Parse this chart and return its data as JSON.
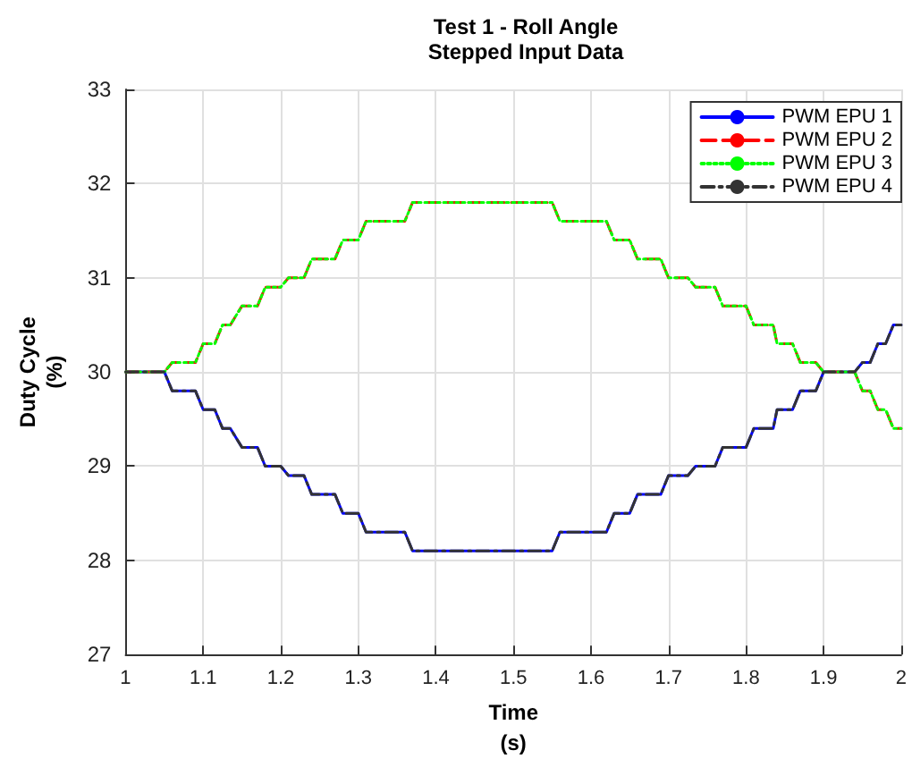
{
  "chart_data": {
    "type": "line",
    "title": "Test 1 - Roll Angle",
    "subtitle": "Stepped Input Data",
    "xlabel": "Time\n(s)",
    "ylabel": "Duty Cycle\n(%)",
    "xlim": [
      1,
      2
    ],
    "xticks": [
      1,
      1.1,
      1.2,
      1.3,
      1.4,
      1.5,
      1.6,
      1.7,
      1.8,
      1.9,
      2
    ],
    "ylim": [
      27,
      33
    ],
    "yticks": [
      27,
      28,
      29,
      30,
      31,
      32,
      33
    ],
    "grid": true,
    "legend": "top right",
    "marker": "none",
    "series": [
      {
        "name": "PWM EPU 1",
        "color": "#0000ff",
        "line_style": "solid",
        "x": [
          1,
          1.05,
          1.06,
          1.09,
          1.1,
          1.115,
          1.125,
          1.135,
          1.15,
          1.17,
          1.18,
          1.2,
          1.21,
          1.23,
          1.24,
          1.27,
          1.28,
          1.3,
          1.31,
          1.36,
          1.37,
          1.55,
          1.56,
          1.62,
          1.63,
          1.65,
          1.66,
          1.69,
          1.7,
          1.725,
          1.735,
          1.76,
          1.77,
          1.8,
          1.81,
          1.835,
          1.84,
          1.86,
          1.87,
          1.89,
          1.9,
          1.94,
          1.95,
          1.96,
          1.97,
          1.98,
          1.99,
          2
        ],
        "values": [
          30,
          30,
          29.8,
          29.8,
          29.6,
          29.6,
          29.4,
          29.4,
          29.2,
          29.2,
          29,
          29,
          28.9,
          28.9,
          28.7,
          28.7,
          28.5,
          28.5,
          28.3,
          28.3,
          28.1,
          28.1,
          28.3,
          28.3,
          28.5,
          28.5,
          28.7,
          28.7,
          28.9,
          28.9,
          29,
          29,
          29.2,
          29.2,
          29.4,
          29.4,
          29.6,
          29.6,
          29.8,
          29.8,
          30,
          30,
          30.1,
          30.1,
          30.3,
          30.3,
          30.5,
          30.5
        ]
      },
      {
        "name": "PWM EPU 2",
        "color": "#ff0000",
        "line_style": "dashed",
        "x": [
          1,
          1.05,
          1.06,
          1.09,
          1.1,
          1.115,
          1.125,
          1.135,
          1.15,
          1.17,
          1.18,
          1.2,
          1.21,
          1.23,
          1.24,
          1.27,
          1.28,
          1.3,
          1.31,
          1.36,
          1.37,
          1.55,
          1.56,
          1.62,
          1.63,
          1.65,
          1.66,
          1.69,
          1.7,
          1.725,
          1.735,
          1.76,
          1.77,
          1.8,
          1.81,
          1.835,
          1.84,
          1.86,
          1.87,
          1.89,
          1.9,
          1.94,
          1.95,
          1.96,
          1.97,
          1.98,
          1.99,
          2
        ],
        "values": [
          30,
          30,
          30.1,
          30.1,
          30.3,
          30.3,
          30.5,
          30.5,
          30.7,
          30.7,
          30.9,
          30.9,
          31,
          31,
          31.2,
          31.2,
          31.4,
          31.4,
          31.6,
          31.6,
          31.8,
          31.8,
          31.6,
          31.6,
          31.4,
          31.4,
          31.2,
          31.2,
          31,
          31,
          30.9,
          30.9,
          30.7,
          30.7,
          30.5,
          30.5,
          30.3,
          30.3,
          30.1,
          30.1,
          30,
          30,
          29.8,
          29.8,
          29.6,
          29.6,
          29.4,
          29.4
        ]
      },
      {
        "name": "PWM EPU 3",
        "color": "#00ff00",
        "line_style": "dotted",
        "x": [
          1,
          1.05,
          1.06,
          1.09,
          1.1,
          1.115,
          1.125,
          1.135,
          1.15,
          1.17,
          1.18,
          1.2,
          1.21,
          1.23,
          1.24,
          1.27,
          1.28,
          1.3,
          1.31,
          1.36,
          1.37,
          1.55,
          1.56,
          1.62,
          1.63,
          1.65,
          1.66,
          1.69,
          1.7,
          1.725,
          1.735,
          1.76,
          1.77,
          1.8,
          1.81,
          1.835,
          1.84,
          1.86,
          1.87,
          1.89,
          1.9,
          1.94,
          1.95,
          1.96,
          1.97,
          1.98,
          1.99,
          2
        ],
        "values": [
          30,
          30,
          30.1,
          30.1,
          30.3,
          30.3,
          30.5,
          30.5,
          30.7,
          30.7,
          30.9,
          30.9,
          31,
          31,
          31.2,
          31.2,
          31.4,
          31.4,
          31.6,
          31.6,
          31.8,
          31.8,
          31.6,
          31.6,
          31.4,
          31.4,
          31.2,
          31.2,
          31,
          31,
          30.9,
          30.9,
          30.7,
          30.7,
          30.5,
          30.5,
          30.3,
          30.3,
          30.1,
          30.1,
          30,
          30,
          29.8,
          29.8,
          29.6,
          29.6,
          29.4,
          29.4
        ]
      },
      {
        "name": "PWM EPU 4",
        "color": "#333333",
        "line_style": "dashdot",
        "x": [
          1,
          1.05,
          1.06,
          1.09,
          1.1,
          1.115,
          1.125,
          1.135,
          1.15,
          1.17,
          1.18,
          1.2,
          1.21,
          1.23,
          1.24,
          1.27,
          1.28,
          1.3,
          1.31,
          1.36,
          1.37,
          1.55,
          1.56,
          1.62,
          1.63,
          1.65,
          1.66,
          1.69,
          1.7,
          1.725,
          1.735,
          1.76,
          1.77,
          1.8,
          1.81,
          1.835,
          1.84,
          1.86,
          1.87,
          1.89,
          1.9,
          1.94,
          1.95,
          1.96,
          1.97,
          1.98,
          1.99,
          2
        ],
        "values": [
          30,
          30,
          29.8,
          29.8,
          29.6,
          29.6,
          29.4,
          29.4,
          29.2,
          29.2,
          29,
          29,
          28.9,
          28.9,
          28.7,
          28.7,
          28.5,
          28.5,
          28.3,
          28.3,
          28.1,
          28.1,
          28.3,
          28.3,
          28.5,
          28.5,
          28.7,
          28.7,
          28.9,
          28.9,
          29,
          29,
          29.2,
          29.2,
          29.4,
          29.4,
          29.6,
          29.6,
          29.8,
          29.8,
          30,
          30,
          30.1,
          30.1,
          30.3,
          30.3,
          30.5,
          30.5
        ]
      }
    ]
  }
}
